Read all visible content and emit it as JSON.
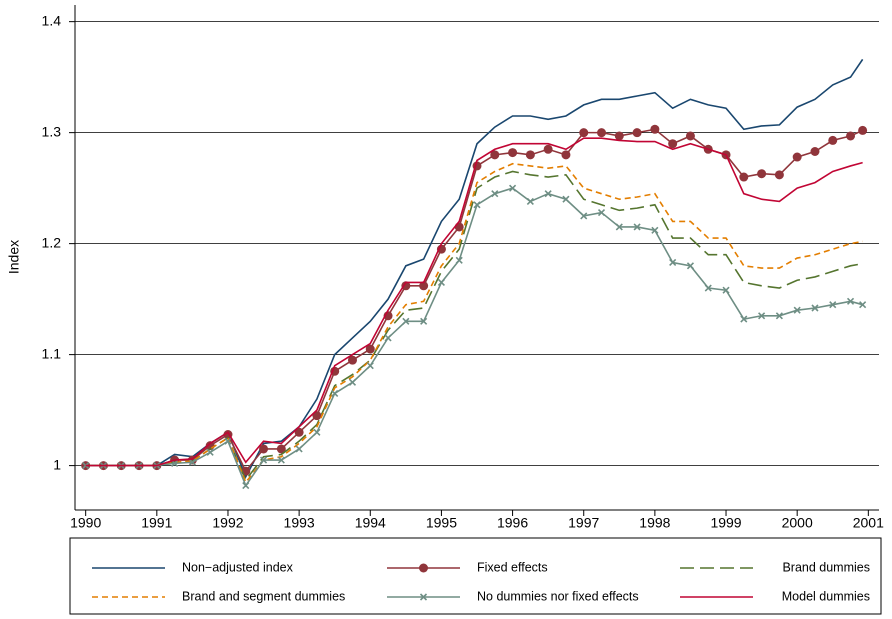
{
  "chart_data": {
    "type": "line",
    "y_label": "Index",
    "x": [
      1990,
      1990.25,
      1990.5,
      1990.75,
      1991,
      1991.25,
      1991.5,
      1991.75,
      1992,
      1992.25,
      1992.5,
      1992.75,
      1993,
      1993.25,
      1993.5,
      1993.75,
      1994,
      1994.25,
      1994.5,
      1994.75,
      1995,
      1995.25,
      1995.5,
      1995.75,
      1996,
      1996.25,
      1996.5,
      1996.75,
      1997,
      1997.25,
      1997.5,
      1997.75,
      1998,
      1998.25,
      1998.5,
      1998.75,
      1999,
      1999.25,
      1999.5,
      1999.75,
      2000,
      2000.25,
      2000.5,
      2000.75,
      2000.92
    ],
    "xlim": [
      1989.85,
      2001.15
    ],
    "xticks": [
      1990,
      1991,
      1992,
      1993,
      1994,
      1995,
      1996,
      1997,
      1998,
      1999,
      2000,
      2001
    ],
    "ylim": [
      0.96,
      1.415
    ],
    "yticks": [
      1,
      1.1,
      1.2,
      1.3,
      1.4
    ],
    "grid": true,
    "legend": "bottom",
    "series": [
      {
        "name": "Non−adjusted index",
        "color": "#1a476f",
        "style": "solid",
        "marker": "none",
        "values": [
          1,
          1,
          1,
          1,
          1,
          1.01,
          1.008,
          1.02,
          1.03,
          0.99,
          1.02,
          1.022,
          1.035,
          1.06,
          1.1,
          1.115,
          1.13,
          1.15,
          1.18,
          1.186,
          1.22,
          1.24,
          1.29,
          1.305,
          1.315,
          1.315,
          1.312,
          1.315,
          1.325,
          1.33,
          1.33,
          1.333,
          1.336,
          1.322,
          1.33,
          1.325,
          1.322,
          1.303,
          1.306,
          1.307,
          1.323,
          1.33,
          1.343,
          1.35,
          1.366
        ]
      },
      {
        "name": "Fixed effects",
        "color": "#90353b",
        "style": "solid",
        "marker": "circle",
        "values": [
          1,
          1,
          1,
          1,
          1,
          1.005,
          1.005,
          1.018,
          1.028,
          0.995,
          1.015,
          1.015,
          1.03,
          1.045,
          1.085,
          1.095,
          1.105,
          1.135,
          1.162,
          1.162,
          1.195,
          1.215,
          1.27,
          1.28,
          1.282,
          1.28,
          1.285,
          1.28,
          1.3,
          1.3,
          1.297,
          1.3,
          1.303,
          1.29,
          1.297,
          1.285,
          1.28,
          1.26,
          1.263,
          1.262,
          1.278,
          1.283,
          1.293,
          1.297,
          1.302
        ]
      },
      {
        "name": "Brand dummies",
        "color": "#55752f",
        "style": "longdash",
        "marker": "none",
        "values": [
          1,
          1,
          1,
          1,
          1,
          1.003,
          1.004,
          1.015,
          1.025,
          0.987,
          1.008,
          1.01,
          1.022,
          1.037,
          1.072,
          1.082,
          1.095,
          1.122,
          1.14,
          1.142,
          1.175,
          1.195,
          1.25,
          1.26,
          1.265,
          1.262,
          1.26,
          1.262,
          1.24,
          1.235,
          1.23,
          1.232,
          1.235,
          1.205,
          1.205,
          1.19,
          1.19,
          1.165,
          1.162,
          1.16,
          1.167,
          1.17,
          1.175,
          1.18,
          1.182
        ]
      },
      {
        "name": "Brand and segment dummies",
        "color": "#e37e00",
        "style": "dash",
        "marker": "none",
        "values": [
          1,
          1,
          1,
          1,
          1,
          1.003,
          1.004,
          1.015,
          1.025,
          0.985,
          1.005,
          1.008,
          1.02,
          1.035,
          1.07,
          1.08,
          1.095,
          1.125,
          1.145,
          1.148,
          1.18,
          1.2,
          1.255,
          1.265,
          1.272,
          1.27,
          1.268,
          1.27,
          1.25,
          1.245,
          1.24,
          1.242,
          1.245,
          1.22,
          1.22,
          1.205,
          1.205,
          1.18,
          1.178,
          1.178,
          1.187,
          1.19,
          1.195,
          1.2,
          1.202
        ]
      },
      {
        "name": "No dummies nor fixed effects",
        "color": "#6e8e84",
        "style": "solid",
        "marker": "x",
        "values": [
          1,
          1,
          1,
          1,
          1,
          1.002,
          1.003,
          1.012,
          1.022,
          0.982,
          1.005,
          1.005,
          1.015,
          1.03,
          1.065,
          1.075,
          1.09,
          1.115,
          1.13,
          1.13,
          1.165,
          1.185,
          1.235,
          1.245,
          1.25,
          1.238,
          1.245,
          1.24,
          1.225,
          1.228,
          1.215,
          1.215,
          1.212,
          1.183,
          1.18,
          1.16,
          1.158,
          1.132,
          1.135,
          1.135,
          1.14,
          1.142,
          1.145,
          1.148,
          1.145
        ]
      },
      {
        "name": "Model dummies",
        "color": "#c10534",
        "style": "solid",
        "marker": "none",
        "values": [
          1,
          1,
          1,
          1,
          1,
          1.005,
          1.006,
          1.02,
          1.03,
          1.003,
          1.022,
          1.02,
          1.035,
          1.05,
          1.09,
          1.1,
          1.11,
          1.14,
          1.165,
          1.165,
          1.2,
          1.22,
          1.275,
          1.285,
          1.29,
          1.29,
          1.29,
          1.285,
          1.295,
          1.295,
          1.293,
          1.292,
          1.292,
          1.285,
          1.29,
          1.285,
          1.28,
          1.245,
          1.24,
          1.238,
          1.25,
          1.255,
          1.265,
          1.27,
          1.273
        ]
      }
    ]
  }
}
